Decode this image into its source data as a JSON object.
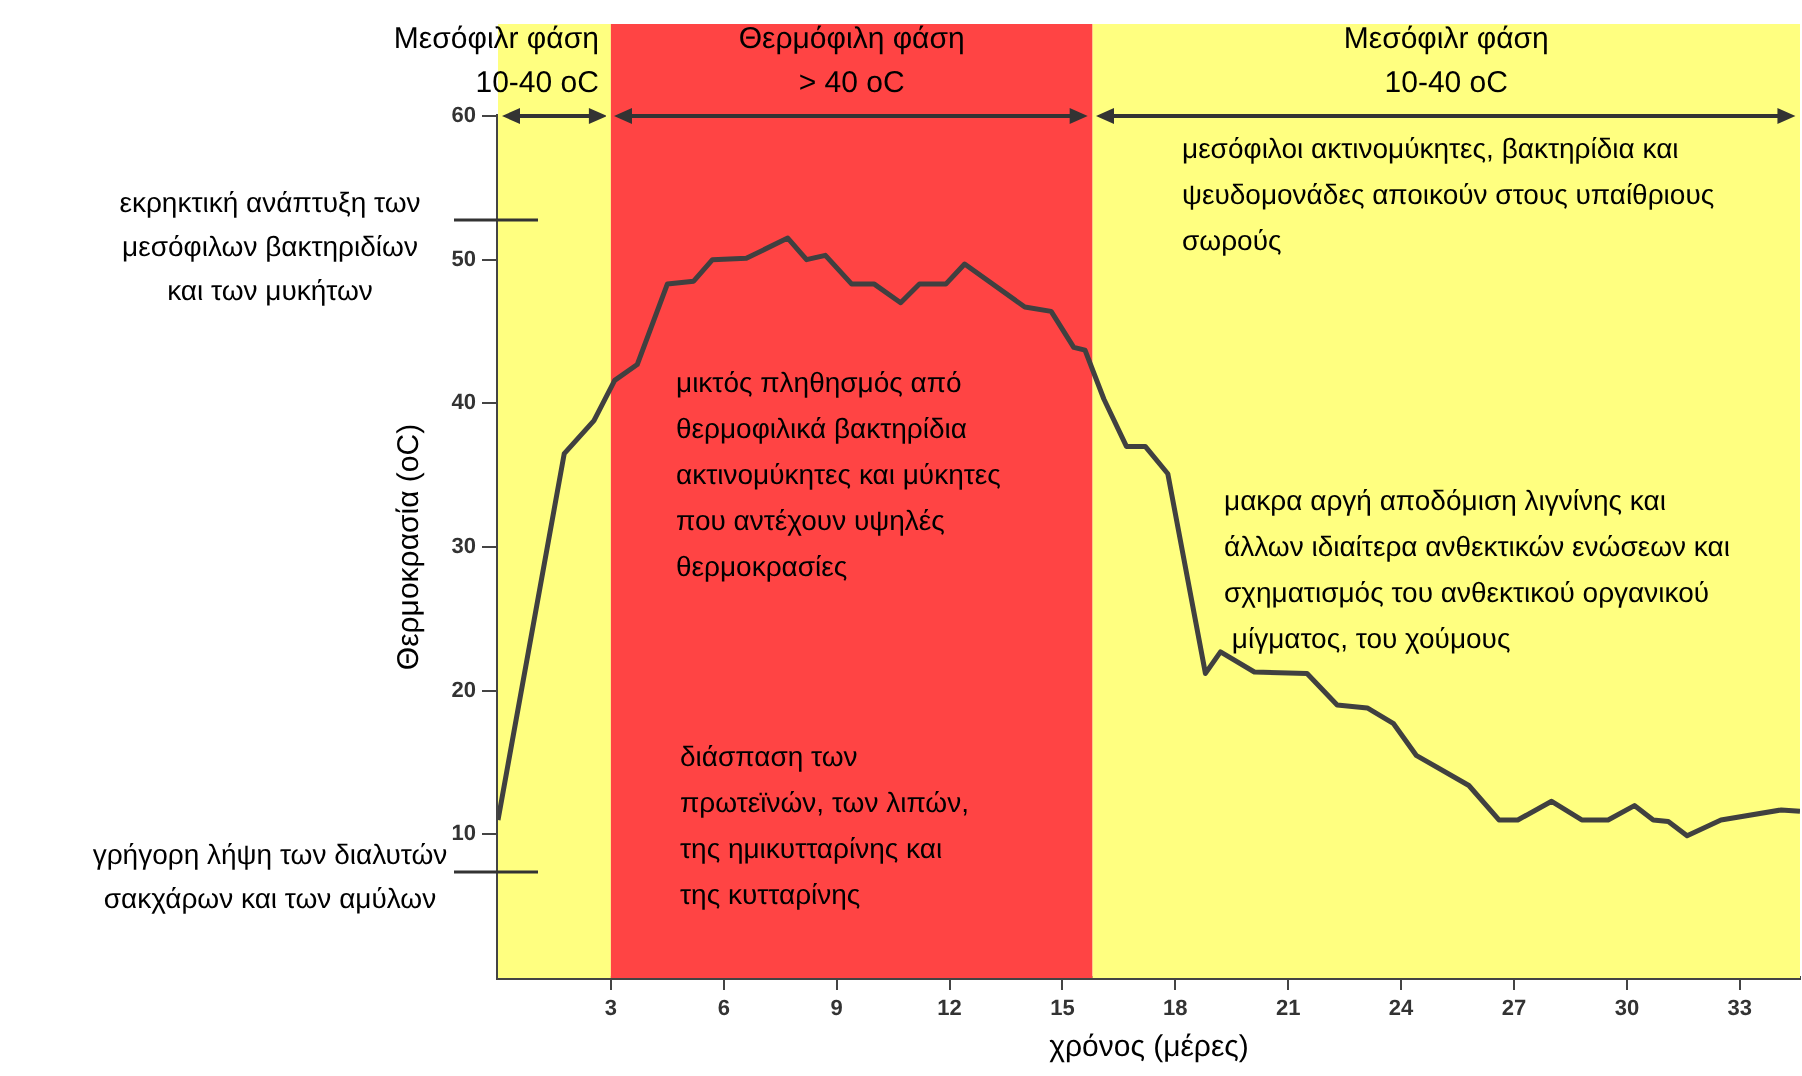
{
  "chart_data": {
    "type": "line",
    "xlabel": "χρόνος (μέρες)",
    "ylabel": "Θερμοκρασία (oC)",
    "xlim": [
      0,
      34.6
    ],
    "xticks": [
      3,
      6,
      9,
      12,
      15,
      18,
      21,
      24,
      27,
      30,
      33
    ],
    "ylim": [
      0,
      60
    ],
    "yticks": [
      10,
      20,
      30,
      40,
      50,
      60
    ],
    "grid": false,
    "legend": false,
    "marker": "none",
    "line_style": "solid",
    "series": [
      {
        "color": "#404040",
        "x": [
          0,
          1.76,
          2.55,
          3.1,
          3.7,
          4.5,
          5.2,
          5.7,
          6.6,
          7.7,
          8.2,
          8.7,
          9.4,
          10,
          10.7,
          11.2,
          11.9,
          12.4,
          14,
          14.7,
          15.3,
          15.6,
          16.1,
          16.7,
          17.2,
          17.8,
          18.8,
          19.2,
          20.1,
          21.5,
          22.3,
          23.1,
          23.8,
          24.4,
          25.8,
          26.6,
          27.1,
          28,
          28.8,
          29.5,
          30.2,
          30.7,
          31.1,
          31.6,
          32.5,
          34.1,
          34.6
        ],
        "values": [
          11,
          36.5,
          38.8,
          41.6,
          42.7,
          48.3,
          48.5,
          50,
          50.1,
          51.5,
          50,
          50.3,
          48.3,
          48.3,
          47,
          48.3,
          48.3,
          49.7,
          46.7,
          46.4,
          43.9,
          43.7,
          40.3,
          37,
          37,
          35.1,
          21.2,
          22.7,
          21.3,
          21.2,
          19,
          18.8,
          17.7,
          15.5,
          13.4,
          11,
          11,
          12.3,
          11,
          11,
          12,
          11,
          10.9,
          9.9,
          11,
          11.7,
          11.6
        ]
      }
    ],
    "bands": [
      {
        "axis": "x",
        "from": 0,
        "to": 3,
        "label": "Μεσόφιλr φάση\n10-40 oC",
        "color": "#ffff80"
      },
      {
        "axis": "x",
        "from": 3,
        "to": 15.8,
        "label": "Θερμόφιλη φάση\n> 40 oC",
        "color": "#ff4444"
      },
      {
        "axis": "x",
        "from": 15.8,
        "to": 34.6,
        "label": "Μεσόφιλr φάση\n10-40 oC",
        "color": "#ffff80"
      }
    ],
    "annotations": [
      "εκρηκτική ανάπτυξη των\nμεσόφιλων βακτηριδίων\nκαι των μυκήτων",
      "γρήγορη λήψη των διαλυτών\nσακχάρων και των αμύλων",
      "μικτός πληθησμός από\nθερμοφιλικά βακτηρίδια\nακτινομύκητες και μύκητες\nπου αντέχουν υψηλές\nθερμοκρασίες",
      "διάσπαση των\nπρωτεϊνών, των λιπών,\nτης ημικυτταρίνης και\nτης κυτταρίνης",
      "μεσόφιλοι ακτινομύκητες, βακτηρίδια και\nψευδομονάδες αποικούν στους υπαίθριους\nσωρούς",
      "μακρα αργή αποδόμιση λιγνίνης και\nάλλων ιδιαίτερα ανθεκτικών ενώσεων και\nσχηματισμός του ανθεκτικού οργανικού\n μίγματος, του χούμους"
    ]
  }
}
